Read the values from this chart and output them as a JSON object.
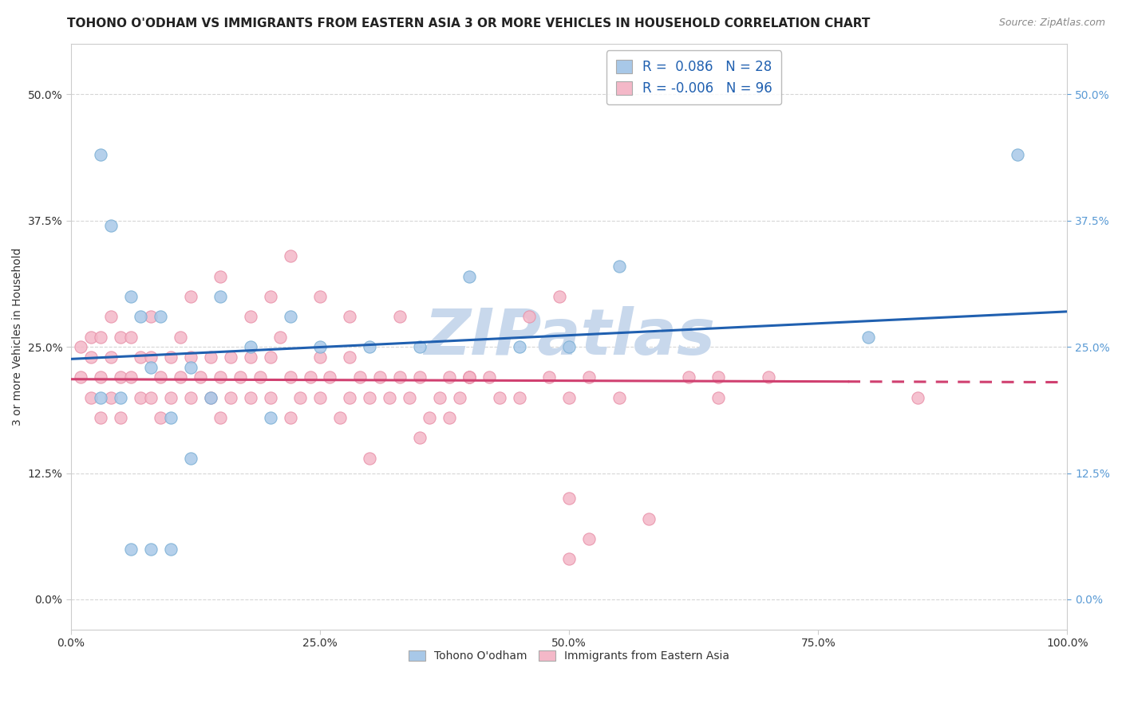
{
  "title": "TOHONO O'ODHAM VS IMMIGRANTS FROM EASTERN ASIA 3 OR MORE VEHICLES IN HOUSEHOLD CORRELATION CHART",
  "source": "Source: ZipAtlas.com",
  "ylabel": "3 or more Vehicles in Household",
  "xlim": [
    0.0,
    100.0
  ],
  "ylim": [
    -3.0,
    55.0
  ],
  "yticks": [
    0.0,
    12.5,
    25.0,
    37.5,
    50.0
  ],
  "ytick_labels": [
    "0.0%",
    "12.5%",
    "25.0%",
    "37.5%",
    "50.0%"
  ],
  "xticks": [
    0,
    25,
    50,
    75,
    100
  ],
  "xtick_labels": [
    "0.0%",
    "25.0%",
    "50.0%",
    "75.0%",
    "100.0%"
  ],
  "legend_r_blue": " 0.086",
  "legend_n_blue": "28",
  "legend_r_pink": "-0.006",
  "legend_n_pink": "96",
  "blue_color": "#a8c8e8",
  "pink_color": "#f4b8c8",
  "blue_edge_color": "#7aafd4",
  "pink_edge_color": "#e890a8",
  "blue_line_color": "#2060b0",
  "pink_line_color": "#d04070",
  "watermark": "ZIPatlas",
  "blue_trend_y_start": 23.8,
  "blue_trend_y_end": 28.5,
  "pink_trend_y_start": 21.8,
  "pink_trend_y_end": 21.5,
  "pink_line_end_x": 78,
  "grid_color": "#cccccc",
  "background_color": "#ffffff",
  "title_fontsize": 11,
  "axis_label_fontsize": 10,
  "tick_fontsize": 10,
  "right_tick_color": "#5b9bd5",
  "watermark_color": "#c8d8ec",
  "watermark_fontsize": 58,
  "marker_size": 120,
  "blue_scatter_x": [
    3,
    4,
    6,
    7,
    8,
    9,
    10,
    12,
    14,
    15,
    18,
    20,
    22,
    25,
    30,
    35,
    40,
    45,
    50,
    55,
    80,
    95,
    3,
    5,
    6,
    8,
    10,
    12
  ],
  "blue_scatter_y": [
    44,
    37,
    30,
    28,
    23,
    28,
    18,
    23,
    20,
    30,
    25,
    18,
    28,
    25,
    25,
    25,
    32,
    25,
    25,
    33,
    26,
    44,
    20,
    20,
    5,
    5,
    5,
    14
  ],
  "pink_scatter_x": [
    1,
    1,
    2,
    2,
    2,
    3,
    3,
    3,
    4,
    4,
    4,
    5,
    5,
    5,
    6,
    6,
    7,
    7,
    8,
    8,
    8,
    9,
    9,
    10,
    10,
    11,
    11,
    12,
    12,
    13,
    14,
    14,
    15,
    15,
    16,
    16,
    17,
    18,
    18,
    19,
    20,
    20,
    21,
    22,
    22,
    23,
    24,
    25,
    25,
    26,
    27,
    28,
    28,
    29,
    30,
    31,
    32,
    33,
    34,
    35,
    36,
    37,
    38,
    39,
    40,
    42,
    45,
    48,
    50,
    52,
    55,
    58,
    50,
    62,
    65,
    70,
    40,
    85,
    50,
    65,
    12,
    15,
    18,
    20,
    22,
    25,
    28,
    30,
    33,
    35,
    38,
    40,
    43,
    46,
    49,
    52
  ],
  "pink_scatter_y": [
    22,
    25,
    20,
    24,
    26,
    18,
    22,
    26,
    20,
    24,
    28,
    18,
    22,
    26,
    22,
    26,
    20,
    24,
    20,
    24,
    28,
    18,
    22,
    20,
    24,
    22,
    26,
    20,
    24,
    22,
    20,
    24,
    18,
    22,
    20,
    24,
    22,
    20,
    24,
    22,
    20,
    24,
    26,
    18,
    22,
    20,
    22,
    20,
    24,
    22,
    18,
    20,
    24,
    22,
    20,
    22,
    20,
    22,
    20,
    22,
    18,
    20,
    22,
    20,
    22,
    22,
    20,
    22,
    20,
    6,
    20,
    8,
    4,
    22,
    20,
    22,
    22,
    20,
    10,
    22,
    30,
    32,
    28,
    30,
    34,
    30,
    28,
    14,
    28,
    16,
    18,
    22,
    20,
    28,
    30,
    22
  ]
}
